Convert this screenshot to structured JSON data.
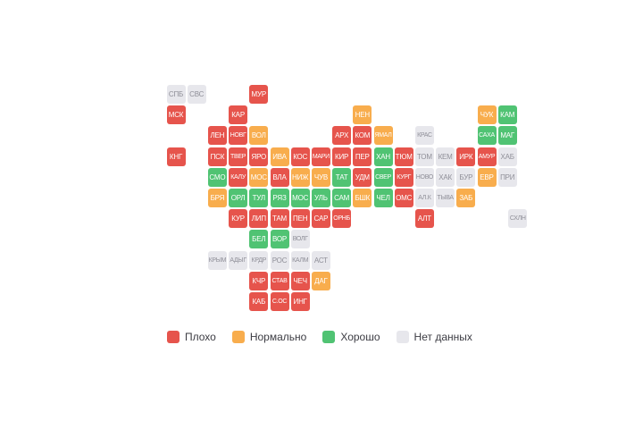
{
  "chart_data": {
    "type": "heatmap",
    "subtype": "tile-cartogram-russia",
    "legend_position": "bottom-left",
    "statuses": {
      "bad": {
        "label": "Плохо",
        "color": "#e6544c",
        "text_color": "#ffffff"
      },
      "normal": {
        "label": "Нормально",
        "color": "#f8ad4d",
        "text_color": "#ffffff"
      },
      "good": {
        "label": "Хорошо",
        "color": "#50c373",
        "text_color": "#ffffff"
      },
      "nodata": {
        "label": "Нет данных",
        "color": "#e7e7ec",
        "text_color": "#8f8f98"
      }
    },
    "legend_order": [
      "bad",
      "normal",
      "good",
      "nodata"
    ],
    "grid": {
      "cols": 18,
      "rows": 11
    },
    "tiles": [
      {
        "label": "СПБ",
        "col": 0,
        "row": 0,
        "status": "nodata"
      },
      {
        "label": "СВС",
        "col": 1,
        "row": 0,
        "status": "nodata"
      },
      {
        "label": "МУР",
        "col": 4,
        "row": 0,
        "status": "bad"
      },
      {
        "label": "МСК",
        "col": 0,
        "row": 1,
        "status": "bad"
      },
      {
        "label": "КАР",
        "col": 3,
        "row": 1,
        "status": "bad"
      },
      {
        "label": "НЕН",
        "col": 9,
        "row": 1,
        "status": "normal"
      },
      {
        "label": "ЧУК",
        "col": 15,
        "row": 1,
        "status": "normal"
      },
      {
        "label": "КАМ",
        "col": 16,
        "row": 1,
        "status": "good"
      },
      {
        "label": "ЛЕН",
        "col": 2,
        "row": 2,
        "status": "bad"
      },
      {
        "label": "НОВГ",
        "col": 3,
        "row": 2,
        "status": "bad"
      },
      {
        "label": "ВОЛ",
        "col": 4,
        "row": 2,
        "status": "normal"
      },
      {
        "label": "АРХ",
        "col": 8,
        "row": 2,
        "status": "bad"
      },
      {
        "label": "КОМ",
        "col": 9,
        "row": 2,
        "status": "bad"
      },
      {
        "label": "ЯМАЛ",
        "col": 10,
        "row": 2,
        "status": "normal"
      },
      {
        "label": "КРАС",
        "col": 12,
        "row": 2,
        "status": "nodata"
      },
      {
        "label": "САХА",
        "col": 15,
        "row": 2,
        "status": "good"
      },
      {
        "label": "МАГ",
        "col": 16,
        "row": 2,
        "status": "good"
      },
      {
        "label": "КНГ",
        "col": 0,
        "row": 3,
        "status": "bad"
      },
      {
        "label": "ПСК",
        "col": 2,
        "row": 3,
        "status": "bad"
      },
      {
        "label": "ТВЕР",
        "col": 3,
        "row": 3,
        "status": "bad"
      },
      {
        "label": "ЯРО",
        "col": 4,
        "row": 3,
        "status": "bad"
      },
      {
        "label": "ИВА",
        "col": 5,
        "row": 3,
        "status": "normal"
      },
      {
        "label": "КОС",
        "col": 6,
        "row": 3,
        "status": "bad"
      },
      {
        "label": "МАРИ",
        "col": 7,
        "row": 3,
        "status": "bad"
      },
      {
        "label": "КИР",
        "col": 8,
        "row": 3,
        "status": "bad"
      },
      {
        "label": "ПЕР",
        "col": 9,
        "row": 3,
        "status": "bad"
      },
      {
        "label": "ХАН",
        "col": 10,
        "row": 3,
        "status": "good"
      },
      {
        "label": "ТЮМ",
        "col": 11,
        "row": 3,
        "status": "bad"
      },
      {
        "label": "ТОМ",
        "col": 12,
        "row": 3,
        "status": "nodata"
      },
      {
        "label": "КЕМ",
        "col": 13,
        "row": 3,
        "status": "nodata"
      },
      {
        "label": "ИРК",
        "col": 14,
        "row": 3,
        "status": "bad"
      },
      {
        "label": "АМУР",
        "col": 15,
        "row": 3,
        "status": "bad"
      },
      {
        "label": "ХАБ",
        "col": 16,
        "row": 3,
        "status": "nodata"
      },
      {
        "label": "СМО",
        "col": 2,
        "row": 4,
        "status": "good"
      },
      {
        "label": "КАЛУ",
        "col": 3,
        "row": 4,
        "status": "bad"
      },
      {
        "label": "МОС",
        "col": 4,
        "row": 4,
        "status": "normal"
      },
      {
        "label": "ВЛА",
        "col": 5,
        "row": 4,
        "status": "bad"
      },
      {
        "label": "НИЖ",
        "col": 6,
        "row": 4,
        "status": "normal"
      },
      {
        "label": "ЧУВ",
        "col": 7,
        "row": 4,
        "status": "normal"
      },
      {
        "label": "ТАТ",
        "col": 8,
        "row": 4,
        "status": "good"
      },
      {
        "label": "УДМ",
        "col": 9,
        "row": 4,
        "status": "bad"
      },
      {
        "label": "СВЕР",
        "col": 10,
        "row": 4,
        "status": "good"
      },
      {
        "label": "КУРГ",
        "col": 11,
        "row": 4,
        "status": "bad"
      },
      {
        "label": "НОВО",
        "col": 12,
        "row": 4,
        "status": "nodata"
      },
      {
        "label": "ХАК",
        "col": 13,
        "row": 4,
        "status": "nodata"
      },
      {
        "label": "БУР",
        "col": 14,
        "row": 4,
        "status": "nodata"
      },
      {
        "label": "ЕВР",
        "col": 15,
        "row": 4,
        "status": "normal"
      },
      {
        "label": "ПРИ",
        "col": 16,
        "row": 4,
        "status": "nodata"
      },
      {
        "label": "БРЯ",
        "col": 2,
        "row": 5,
        "status": "normal"
      },
      {
        "label": "ОРЛ",
        "col": 3,
        "row": 5,
        "status": "good"
      },
      {
        "label": "ТУЛ",
        "col": 4,
        "row": 5,
        "status": "good"
      },
      {
        "label": "РЯЗ",
        "col": 5,
        "row": 5,
        "status": "good"
      },
      {
        "label": "МОС",
        "col": 6,
        "row": 5,
        "status": "good"
      },
      {
        "label": "УЛЬ",
        "col": 7,
        "row": 5,
        "status": "good"
      },
      {
        "label": "САМ",
        "col": 8,
        "row": 5,
        "status": "good"
      },
      {
        "label": "БШК",
        "col": 9,
        "row": 5,
        "status": "normal"
      },
      {
        "label": "ЧЕЛ",
        "col": 10,
        "row": 5,
        "status": "good"
      },
      {
        "label": "ОМС",
        "col": 11,
        "row": 5,
        "status": "bad"
      },
      {
        "label": "АЛ.К",
        "col": 12,
        "row": 5,
        "status": "nodata"
      },
      {
        "label": "ТЫВА",
        "col": 13,
        "row": 5,
        "status": "nodata"
      },
      {
        "label": "ЗАБ",
        "col": 14,
        "row": 5,
        "status": "normal"
      },
      {
        "label": "КУР",
        "col": 3,
        "row": 6,
        "status": "bad"
      },
      {
        "label": "ЛИП",
        "col": 4,
        "row": 6,
        "status": "bad"
      },
      {
        "label": "ТАМ",
        "col": 5,
        "row": 6,
        "status": "bad"
      },
      {
        "label": "ПЕН",
        "col": 6,
        "row": 6,
        "status": "bad"
      },
      {
        "label": "САР",
        "col": 7,
        "row": 6,
        "status": "bad"
      },
      {
        "label": "ОРНБ",
        "col": 8,
        "row": 6,
        "status": "bad"
      },
      {
        "label": "АЛТ",
        "col": 12,
        "row": 6,
        "status": "bad"
      },
      {
        "label": "СХЛН",
        "col": 16.5,
        "row": 6,
        "status": "nodata"
      },
      {
        "label": "БЕЛ",
        "col": 4,
        "row": 7,
        "status": "good"
      },
      {
        "label": "ВОР",
        "col": 5,
        "row": 7,
        "status": "good"
      },
      {
        "label": "ВОЛГ",
        "col": 6,
        "row": 7,
        "status": "nodata"
      },
      {
        "label": "КРЫМ",
        "col": 2,
        "row": 8,
        "status": "nodata"
      },
      {
        "label": "АДЫГ",
        "col": 3,
        "row": 8,
        "status": "nodata"
      },
      {
        "label": "КРДР",
        "col": 4,
        "row": 8,
        "status": "nodata"
      },
      {
        "label": "РОС",
        "col": 5,
        "row": 8,
        "status": "nodata"
      },
      {
        "label": "КАЛМ",
        "col": 6,
        "row": 8,
        "status": "nodata"
      },
      {
        "label": "АСТ",
        "col": 7,
        "row": 8,
        "status": "nodata"
      },
      {
        "label": "КЧР",
        "col": 4,
        "row": 9,
        "status": "bad"
      },
      {
        "label": "СТАВ",
        "col": 5,
        "row": 9,
        "status": "bad"
      },
      {
        "label": "ЧЕЧ",
        "col": 6,
        "row": 9,
        "status": "bad"
      },
      {
        "label": "ДАГ",
        "col": 7,
        "row": 9,
        "status": "normal"
      },
      {
        "label": "КАБ",
        "col": 4,
        "row": 10,
        "status": "bad"
      },
      {
        "label": "С.ОС",
        "col": 5,
        "row": 10,
        "status": "bad"
      },
      {
        "label": "ИНГ",
        "col": 6,
        "row": 10,
        "status": "bad"
      }
    ]
  }
}
